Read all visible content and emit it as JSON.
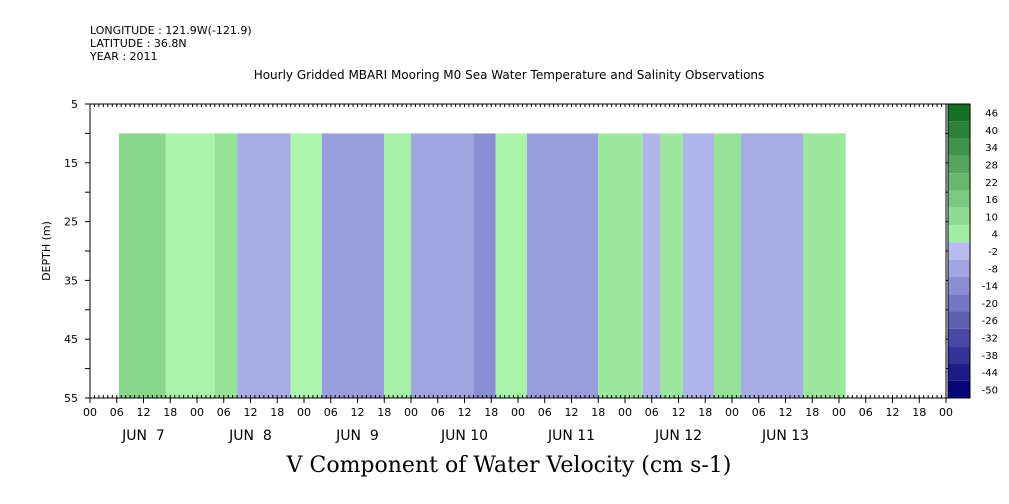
{
  "header": {
    "longitude": "LONGITUDE : 121.9W(-121.9)",
    "latitude": "LATITUDE : 36.8N",
    "year": "YEAR : 2011"
  },
  "chart_data": {
    "type": "heatmap",
    "title": "Hourly Gridded MBARI Mooring M0 Sea Water Temperature and Salinity Observations",
    "ylabel": "DEPTH (m)",
    "bottom_title": "V Component of Water Velocity (cm s-1)",
    "x_hour_ticks": [
      "00",
      "06",
      "12",
      "18",
      "00",
      "06",
      "12",
      "18",
      "00",
      "06",
      "12",
      "18",
      "00",
      "06",
      "12",
      "18",
      "00",
      "06",
      "12",
      "18",
      "00",
      "06",
      "12",
      "18",
      "00",
      "06",
      "12",
      "18",
      "00",
      "06",
      "12",
      "18",
      "00"
    ],
    "x_day_labels": [
      "JUN  7",
      "JUN  8",
      "JUN  9",
      "JUN 10",
      "JUN 11",
      "JUN 12",
      "JUN 13"
    ],
    "y_ticks": [
      "5",
      "15",
      "25",
      "35",
      "45",
      "55"
    ],
    "ylim": [
      5,
      55
    ],
    "y_inverted": true,
    "colorbar": {
      "labels": [
        "46",
        "40",
        "34",
        "28",
        "22",
        "16",
        "10",
        "4",
        "-2",
        "-8",
        "-14",
        "-20",
        "-26",
        "-32",
        "-38",
        "-44",
        "-50"
      ],
      "range": [
        -50,
        50
      ]
    },
    "data_depth_range": [
      10,
      55
    ],
    "data_time_range_hours": [
      6.5,
      169.5
    ],
    "velocity_bands": [
      {
        "start_hour": 6.5,
        "end_hour": 17,
        "value": 12
      },
      {
        "start_hour": 17,
        "end_hour": 28,
        "value": 2
      },
      {
        "start_hour": 28,
        "end_hour": 33,
        "value": 8
      },
      {
        "start_hour": 33,
        "end_hour": 45,
        "value": -6
      },
      {
        "start_hour": 45,
        "end_hour": 52,
        "value": 1
      },
      {
        "start_hour": 52,
        "end_hour": 66,
        "value": -10
      },
      {
        "start_hour": 66,
        "end_hour": 72,
        "value": 3
      },
      {
        "start_hour": 72,
        "end_hour": 86,
        "value": -8
      },
      {
        "start_hour": 86,
        "end_hour": 91,
        "value": -14
      },
      {
        "start_hour": 91,
        "end_hour": 98,
        "value": 2
      },
      {
        "start_hour": 98,
        "end_hour": 114,
        "value": -10
      },
      {
        "start_hour": 114,
        "end_hour": 124,
        "value": 6
      },
      {
        "start_hour": 124,
        "end_hour": 128,
        "value": -4
      },
      {
        "start_hour": 128,
        "end_hour": 133,
        "value": 6
      },
      {
        "start_hour": 133,
        "end_hour": 140,
        "value": -4
      },
      {
        "start_hour": 140,
        "end_hour": 146,
        "value": 8
      },
      {
        "start_hour": 146,
        "end_hour": 160,
        "value": -6
      },
      {
        "start_hour": 160,
        "end_hour": 169.5,
        "value": 6
      }
    ]
  }
}
